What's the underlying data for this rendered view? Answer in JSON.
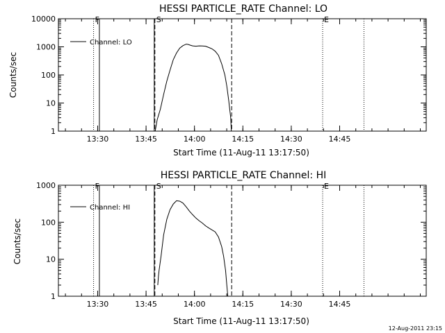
{
  "chart_data": [
    {
      "type": "line",
      "title": "HESSI PARTICLE_RATE Channel: LO",
      "xlabel": "Start Time (11-Aug-11 13:17:50)",
      "ylabel": "Counts/sec",
      "y_scale": "log",
      "ylim": [
        1,
        10000
      ],
      "x_units": "minutes after 13:17:50",
      "xlim": [
        0,
        114
      ],
      "x_ticks": [
        {
          "label": "13:30",
          "value": 12.17
        },
        {
          "label": "13:45",
          "value": 27.17
        },
        {
          "label": "14:00",
          "value": 42.17
        },
        {
          "label": "14:15",
          "value": 57.17
        },
        {
          "label": "14:30",
          "value": 72.17
        },
        {
          "label": "14:45",
          "value": 87.17
        }
      ],
      "y_ticks": [
        {
          "label": "1",
          "value": 1
        },
        {
          "label": "10",
          "value": 10
        },
        {
          "label": "100",
          "value": 100
        },
        {
          "label": "1000",
          "value": 1000
        },
        {
          "label": "10000",
          "value": 10000
        }
      ],
      "legend": {
        "placement": "top-left",
        "entries": [
          "Channel: LO"
        ]
      },
      "markers": [
        {
          "label": "F",
          "x": 10.9,
          "style": "dotted"
        },
        {
          "label": "",
          "x": 12.7,
          "style": "solid"
        },
        {
          "label": "S",
          "x": 29.9,
          "style": "dashed"
        },
        {
          "label": "",
          "x": 29.7,
          "style": "solid"
        },
        {
          "label": "",
          "x": 53.7,
          "style": "dashed"
        },
        {
          "label": "E",
          "x": 81.9,
          "style": "dotted"
        },
        {
          "label": "",
          "x": 94.7,
          "style": "dotted"
        }
      ],
      "series": [
        {
          "name": "Channel: LO",
          "x": [
            30.0,
            30.6,
            31.6,
            32.6,
            33.6,
            34.6,
            35.6,
            36.6,
            37.6,
            38.6,
            39.6,
            40.2,
            40.8,
            41.6,
            42.6,
            43.6,
            44.6,
            45.6,
            46.6,
            47.6,
            48.6,
            49.6,
            50.6,
            51.6,
            52.2,
            52.8,
            53.4,
            53.6
          ],
          "y": [
            1.0,
            2.5,
            6.0,
            20,
            60,
            150,
            350,
            600,
            900,
            1100,
            1250,
            1220,
            1150,
            1080,
            1050,
            1080,
            1070,
            1050,
            950,
            850,
            700,
            500,
            250,
            100,
            40,
            12,
            3,
            1
          ]
        }
      ]
    },
    {
      "type": "line",
      "title": "HESSI PARTICLE_RATE Channel: HI",
      "xlabel": "Start Time (11-Aug-11 13:17:50)",
      "ylabel": "Counts/sec",
      "y_scale": "log",
      "ylim": [
        1,
        1000
      ],
      "x_units": "minutes after 13:17:50",
      "xlim": [
        0,
        114
      ],
      "x_ticks": [
        {
          "label": "13:30",
          "value": 12.17
        },
        {
          "label": "13:45",
          "value": 27.17
        },
        {
          "label": "14:00",
          "value": 42.17
        },
        {
          "label": "14:15",
          "value": 57.17
        },
        {
          "label": "14:30",
          "value": 72.17
        },
        {
          "label": "14:45",
          "value": 87.17
        }
      ],
      "y_ticks": [
        {
          "label": "1",
          "value": 1
        },
        {
          "label": "10",
          "value": 10
        },
        {
          "label": "100",
          "value": 100
        },
        {
          "label": "1000",
          "value": 1000
        }
      ],
      "legend": {
        "placement": "top-left",
        "entries": [
          "Channel: HI"
        ]
      },
      "markers": [
        {
          "label": "F",
          "x": 10.9,
          "style": "dotted"
        },
        {
          "label": "",
          "x": 12.7,
          "style": "solid"
        },
        {
          "label": "S",
          "x": 29.9,
          "style": "dashed"
        },
        {
          "label": "",
          "x": 29.7,
          "style": "solid"
        },
        {
          "label": "",
          "x": 53.7,
          "style": "dashed"
        },
        {
          "label": "E",
          "x": 81.9,
          "style": "dotted"
        },
        {
          "label": "",
          "x": 94.7,
          "style": "dotted"
        }
      ],
      "series": [
        {
          "name": "Channel: HI",
          "x": [
            30.8,
            31.0,
            31.2,
            31.8,
            32.6,
            33.6,
            34.6,
            35.6,
            36.6,
            37.6,
            38.6,
            39.6,
            40.6,
            41.6,
            42.6,
            43.6,
            44.6,
            45.6,
            46.6,
            47.6,
            48.6,
            49.6,
            50.6,
            51.2,
            51.8,
            52.2,
            52.5
          ],
          "y": [
            2,
            3.5,
            5,
            12,
            45,
            120,
            220,
            310,
            380,
            370,
            330,
            260,
            200,
            160,
            130,
            110,
            95,
            80,
            70,
            62,
            55,
            40,
            22,
            12,
            5,
            2,
            1
          ]
        }
      ]
    }
  ],
  "timestamp": "12-Aug-2011 23:15"
}
